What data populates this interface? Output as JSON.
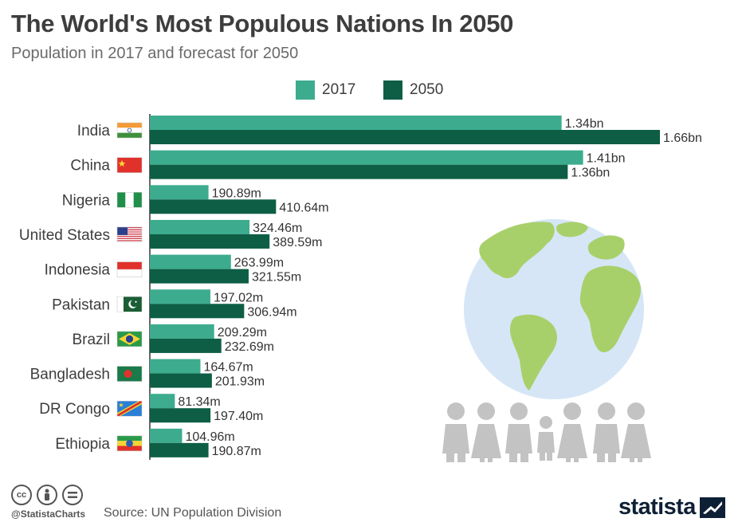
{
  "title": "The World's Most Populous Nations In 2050",
  "subtitle": "Population in 2017 and forecast for 2050",
  "footer": {
    "handle": "@StatistaCharts",
    "source": "Source: UN Population Division",
    "logo": "statista",
    "license_icons": [
      "cc-icon",
      "attribution-icon",
      "no-derivatives-icon"
    ]
  },
  "colors": {
    "2017": "#3dac8e",
    "2050": "#0d5e45",
    "globe_ocean": "#d6e6f7",
    "globe_land": "#a8d06a",
    "people": "#c3c3c3"
  },
  "chart_data": {
    "type": "bar",
    "orientation": "horizontal",
    "title": "The World's Most Populous Nations In 2050",
    "subtitle": "Population in 2017 and forecast for 2050",
    "categories": [
      "India",
      "China",
      "Nigeria",
      "United States",
      "Indonesia",
      "Pakistan",
      "Brazil",
      "Bangladesh",
      "DR Congo",
      "Ethiopia"
    ],
    "flags": [
      "india-flag",
      "china-flag",
      "nigeria-flag",
      "usa-flag",
      "indonesia-flag",
      "pakistan-flag",
      "brazil-flag",
      "bangladesh-flag",
      "drcongo-flag",
      "ethiopia-flag"
    ],
    "series": [
      {
        "name": "2017",
        "values": [
          1340,
          1410,
          190.89,
          324.46,
          263.99,
          197.02,
          209.29,
          164.67,
          81.34,
          104.96
        ],
        "labels": [
          "1.34bn",
          "1.41bn",
          "190.89m",
          "324.46m",
          "263.99m",
          "197.02m",
          "209.29m",
          "164.67m",
          "81.34m",
          "104.96m"
        ]
      },
      {
        "name": "2050",
        "values": [
          1660,
          1360,
          410.64,
          389.59,
          321.55,
          306.94,
          232.69,
          201.93,
          197.4,
          190.87
        ],
        "labels": [
          "1.66bn",
          "1.36bn",
          "410.64m",
          "389.59m",
          "321.55m",
          "306.94m",
          "232.69m",
          "201.93m",
          "197.40m",
          "190.87m"
        ]
      }
    ],
    "unit": "millions",
    "legend": "top-center",
    "grid": false
  }
}
